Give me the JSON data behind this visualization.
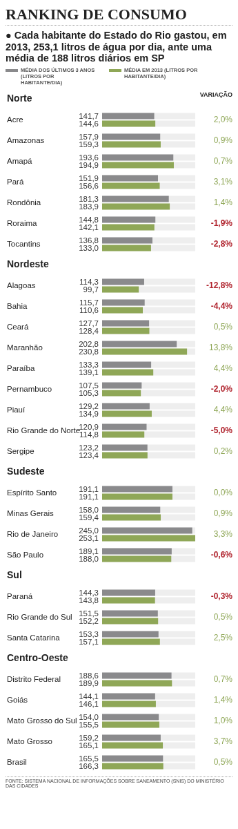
{
  "chart_data": {
    "type": "bar",
    "orientation": "horizontal",
    "title": "RANKING DE CONSUMO",
    "subtitle": "● Cada habitante do Estado do Rio gastou, em 2013, 253,1 litros de água por dia, ante uma média de 188 litros diários em SP",
    "categories": [
      "Norte",
      "Acre",
      "Amazonas",
      "Amapá",
      "Pará",
      "Rondônia",
      "Roraima",
      "Tocantins",
      "Nordeste",
      "Alagoas",
      "Bahia",
      "Ceará",
      "Maranhão",
      "Paraíba",
      "Pernambuco",
      "Piauí",
      "Rio Grande do Norte",
      "Sergipe",
      "Sudeste",
      "Espírito Santo",
      "Minas Gerais",
      "Rio de Janeiro",
      "São Paulo",
      "Sul",
      "Paraná",
      "Rio Grande do Sul",
      "Santa Catarina",
      "Centro-Oeste",
      "Distrito Federal",
      "Goiás",
      "Mato Grosso do Sul",
      "Mato Grosso",
      "Brasil"
    ],
    "series": [
      {
        "name": "MÉDIA DOS ÚLTIMOS 3 ANOS (LITROS POR HABITANTE/DIA)",
        "color": "#8a8a8c",
        "values": [
          null,
          141.7,
          157.9,
          193.6,
          151.9,
          181.3,
          144.8,
          136.8,
          null,
          114.3,
          115.7,
          127.7,
          202.8,
          133.3,
          107.5,
          129.2,
          120.9,
          123.2,
          null,
          191.1,
          158.0,
          245.0,
          189.1,
          null,
          144.3,
          151.5,
          153.3,
          null,
          188.6,
          144.1,
          154.0,
          159.2,
          165.5
        ],
        "value_labels": [
          null,
          "141,7",
          "157,9",
          "193,6",
          "151,9",
          "181,3",
          "144,8",
          "136,8",
          null,
          "114,3",
          "115,7",
          "127,7",
          "202,8",
          "133,3",
          "107,5",
          "129,2",
          "120,9",
          "123,2",
          null,
          "191,1",
          "158,0",
          "245,0",
          "189,1",
          null,
          "144,3",
          "151,5",
          "153,3",
          null,
          "188,6",
          "144,1",
          "154,0",
          "159,2",
          "165,5"
        ]
      },
      {
        "name": "MÉDIA EM 2013 (LITROS POR HABITANTE/DIA)",
        "color": "#8fa757",
        "values": [
          null,
          144.6,
          159.3,
          194.9,
          156.6,
          183.9,
          142.1,
          133.0,
          null,
          99.7,
          110.6,
          128.4,
          230.8,
          139.1,
          105.3,
          134.9,
          114.8,
          123.4,
          null,
          191.1,
          159.4,
          253.1,
          188.0,
          null,
          143.8,
          152.2,
          157.1,
          null,
          189.9,
          146.1,
          155.5,
          165.1,
          166.3
        ],
        "value_labels": [
          null,
          "144,6",
          "159,3",
          "194,9",
          "156,6",
          "183,9",
          "142,1",
          "133,0",
          null,
          "99,7",
          "110,6",
          "128,4",
          "230,8",
          "139,1",
          "105,3",
          "134,9",
          "114,8",
          "123,4",
          null,
          "191,1",
          "159,4",
          "253,1",
          "188,0",
          null,
          "143,8",
          "152,2",
          "157,1",
          null,
          "189,9",
          "146,1",
          "155,5",
          "165,1",
          "166,3"
        ]
      }
    ],
    "tick_labels": "y",
    "legend": "top left",
    "annotations": [
      "VARIAÇÃO",
      "2,0%",
      "0,9%",
      "0,7%",
      "3,1%",
      "1,4%",
      "-1,9%",
      "-2,8%",
      "-12,8%",
      "-4,4%",
      "0,5%",
      "13,8%",
      "4,4%",
      "-2,0%",
      "4,4%",
      "-5,0%",
      "0,2%",
      "0,0%",
      "0,9%",
      "3,3%",
      "-0,6%",
      "-0,3%",
      "0,5%",
      "2,5%",
      "0,7%",
      "1,4%",
      "1,0%",
      "3,7%",
      "0,5%",
      "FONTE: SISTEMA NACIONAL DE INFORMAÇÕES SOBRE SANEAMENTO (SNIS) DO MINISTÉRIO DAS CIDADES"
    ]
  }
}
